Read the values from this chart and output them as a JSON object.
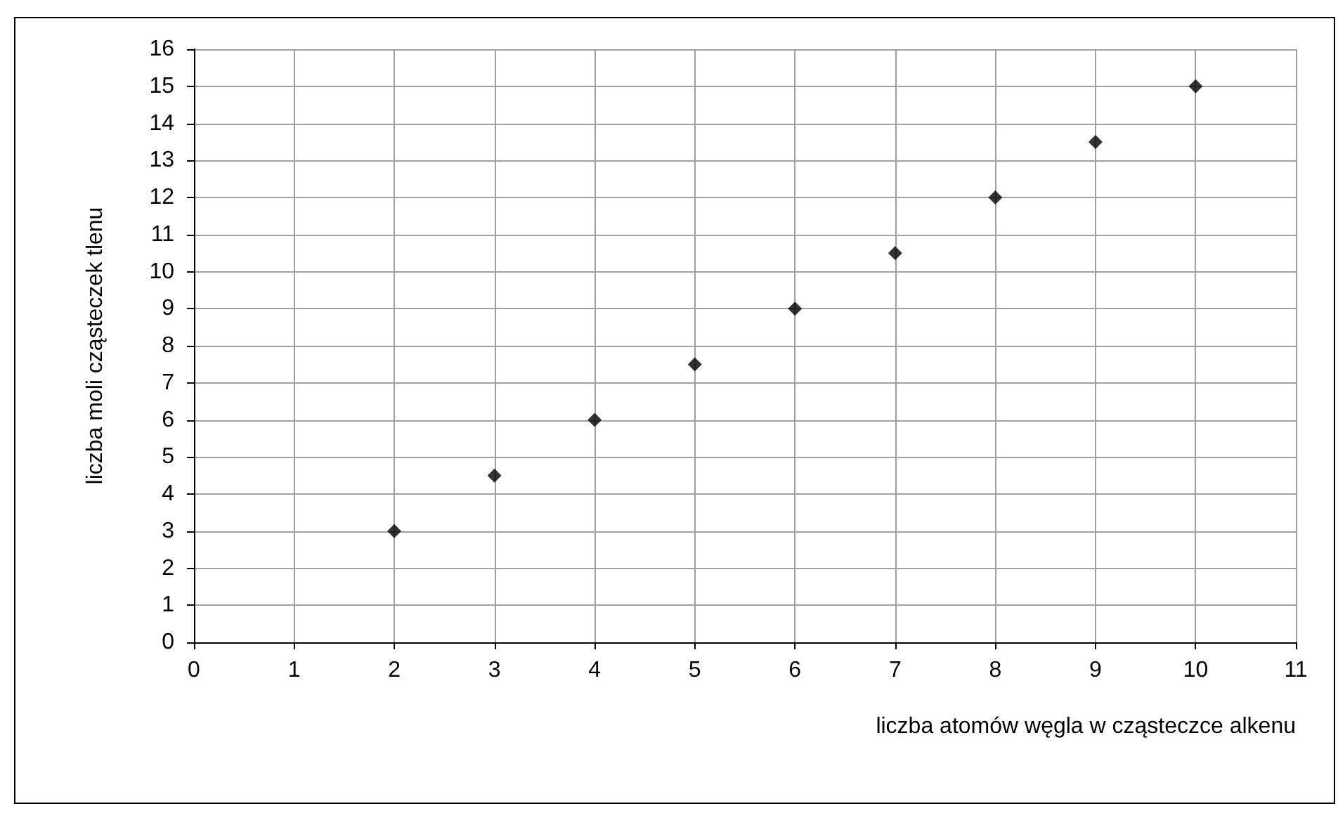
{
  "chart_data": {
    "type": "scatter",
    "xlabel": "liczba atomów węgla w cząsteczce alkenu",
    "ylabel": "liczba moli cząsteczek tlenu",
    "x": [
      2,
      3,
      4,
      5,
      6,
      7,
      8,
      9,
      10
    ],
    "values": [
      3,
      4.5,
      6,
      7.5,
      9,
      10.5,
      12,
      13.5,
      15
    ],
    "color": "#000000",
    "marker": "diamond",
    "grid": true,
    "xlim": [
      0,
      11
    ],
    "xticks": [
      0,
      1,
      2,
      3,
      4,
      5,
      6,
      7,
      8,
      9,
      10,
      11
    ],
    "ylim": [
      0,
      16
    ],
    "yticks": [
      0,
      1,
      2,
      3,
      4,
      5,
      6,
      7,
      8,
      9,
      10,
      11,
      12,
      13,
      14,
      15,
      16
    ]
  }
}
